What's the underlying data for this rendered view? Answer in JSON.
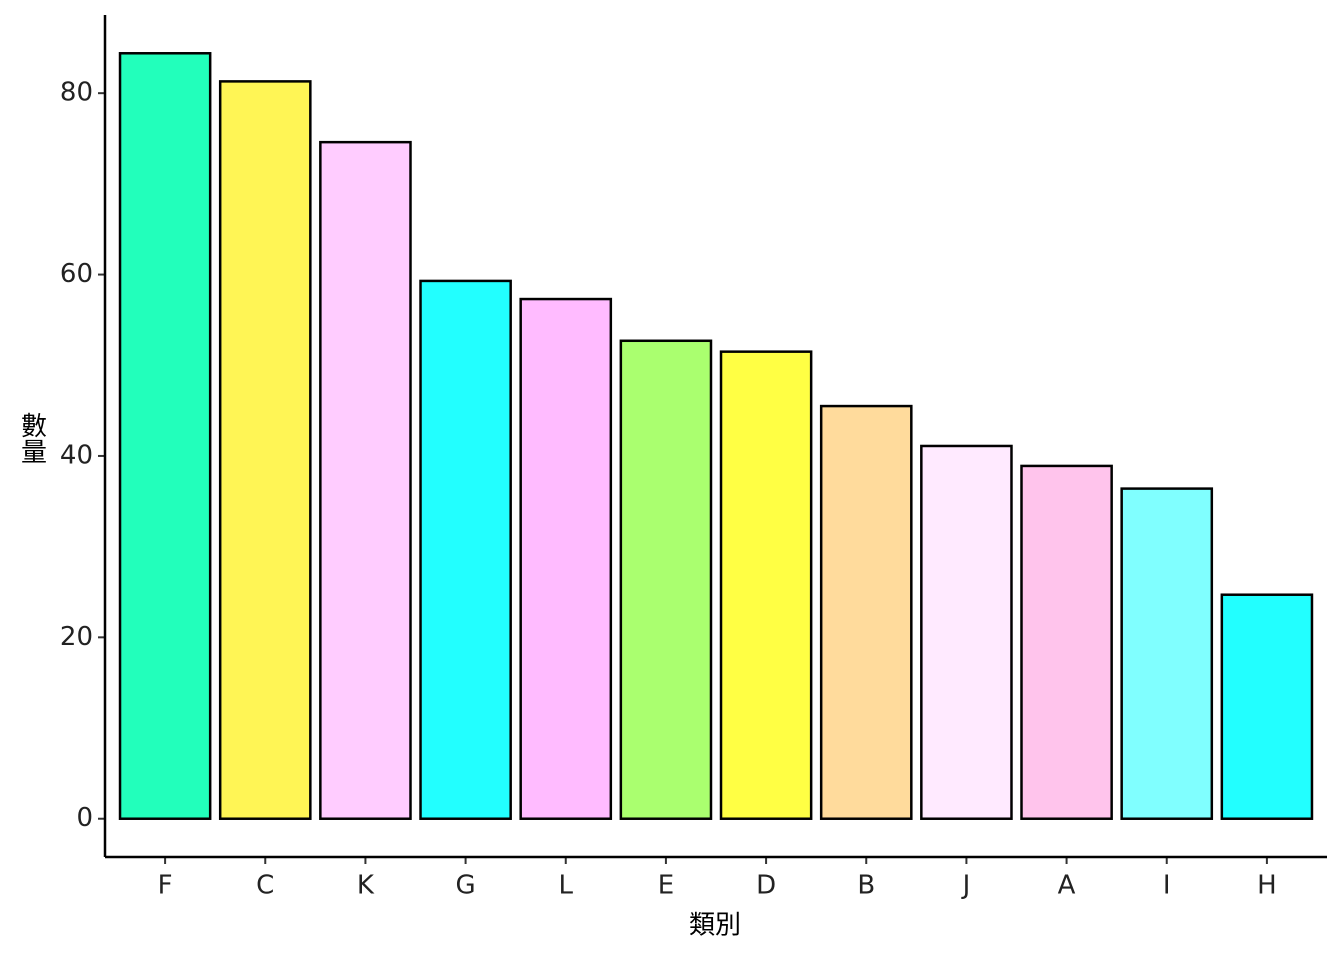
{
  "chart_data": {
    "type": "bar",
    "x_label": "類別",
    "y_label": "數量",
    "categories": [
      "F",
      "C",
      "K",
      "G",
      "L",
      "E",
      "D",
      "B",
      "J",
      "A",
      "I",
      "H"
    ],
    "values": [
      84.4,
      81.3,
      74.6,
      59.3,
      57.3,
      52.7,
      51.5,
      45.5,
      41.1,
      38.9,
      36.4,
      24.7
    ],
    "colors": [
      "#22ffbb",
      "#fff555",
      "#ffccff",
      "#22ffff",
      "#ffbbff",
      "#aaff6f",
      "#ffff44",
      "#ffdb9c",
      "#ffeaff",
      "#ffc4ec",
      "#80ffff",
      "#22ffff"
    ],
    "ylim": [
      -4.22,
      88.62
    ],
    "yticks": [
      0,
      20,
      40,
      60,
      80
    ],
    "grid": false
  }
}
